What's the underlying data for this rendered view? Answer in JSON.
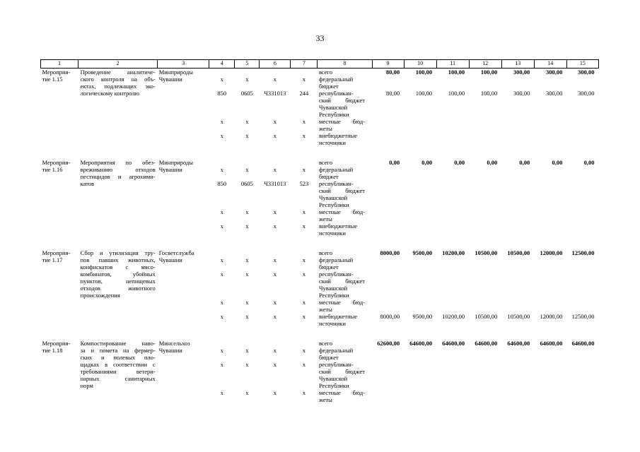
{
  "page": {
    "number": "33"
  },
  "table": {
    "header_cols": [
      "1",
      "2",
      "3",
      "4",
      "5",
      "6",
      "7",
      "8",
      "9",
      "10",
      "11",
      "12",
      "13",
      "14",
      "15"
    ],
    "measures": [
      {
        "id_lines": [
          "Мероприя-",
          "тие 1.15"
        ],
        "name_lines": [
          "Проведение аналитиче-",
          "ского контроля на объ-",
          "ектах, подлежащих эко-",
          "логическому контролю"
        ],
        "agency_lines": [
          "Минприроды",
          "Чувашии"
        ],
        "rows": [
          {
            "codes": [
              "",
              "",
              "",
              ""
            ],
            "type_lines": [
              "всего"
            ],
            "bold": true,
            "values": [
              "80,00",
              "100,00",
              "100,00",
              "100,00",
              "300,00",
              "300,00",
              "300,00"
            ]
          },
          {
            "codes": [
              "х",
              "х",
              "х",
              "х"
            ],
            "type_lines": [
              "федеральный",
              "бюджет"
            ],
            "bold": false,
            "values": [
              "",
              "",
              "",
              "",
              "",
              "",
              ""
            ]
          },
          {
            "codes": [
              "850",
              "0605",
              "Ч331013",
              "244"
            ],
            "type_lines": [
              "республикан-",
              "ский бюджет",
              "Чувашской",
              "Республики"
            ],
            "bold": false,
            "values": [
              "80,00",
              "100,00",
              "100,00",
              "100,00",
              "300,00",
              "300,00",
              "300,00"
            ]
          },
          {
            "codes": [
              "х",
              "х",
              "х",
              "х"
            ],
            "type_lines": [
              "местные бюд-",
              "жеты"
            ],
            "bold": false,
            "values": [
              "",
              "",
              "",
              "",
              "",
              "",
              ""
            ]
          },
          {
            "codes": [
              "х",
              "х",
              "х",
              "х"
            ],
            "type_lines": [
              "внебюджетные",
              "источники"
            ],
            "bold": false,
            "values": [
              "",
              "",
              "",
              "",
              "",
              "",
              ""
            ]
          }
        ]
      },
      {
        "id_lines": [
          "Мероприя-",
          "тие 1.16"
        ],
        "name_lines": [
          "Мероприятия по обез-",
          "вреживанию отходов",
          "пестицидов и агрохими-",
          "катов"
        ],
        "agency_lines": [
          "Минприроды",
          "Чувашии"
        ],
        "rows": [
          {
            "codes": [
              "",
              "",
              "",
              ""
            ],
            "type_lines": [
              "всего"
            ],
            "bold": true,
            "values": [
              "0,00",
              "0,00",
              "0,00",
              "0,00",
              "0,00",
              "0,00",
              "0,00"
            ]
          },
          {
            "codes": [
              "х",
              "х",
              "х",
              "х"
            ],
            "type_lines": [
              "федеральный",
              "бюджет"
            ],
            "bold": false,
            "values": [
              "",
              "",
              "",
              "",
              "",
              "",
              ""
            ]
          },
          {
            "codes": [
              "850",
              "0605",
              "Ч331013",
              "523"
            ],
            "type_lines": [
              "республикан-",
              "ский бюджет",
              "Чувашской",
              "Республики"
            ],
            "bold": false,
            "values": [
              "",
              "",
              "",
              "",
              "",
              "",
              ""
            ]
          },
          {
            "codes": [
              "х",
              "х",
              "х",
              "х"
            ],
            "type_lines": [
              "местные бюд-",
              "жеты"
            ],
            "bold": false,
            "values": [
              "",
              "",
              "",
              "",
              "",
              "",
              ""
            ]
          },
          {
            "codes": [
              "х",
              "х",
              "х",
              "х"
            ],
            "type_lines": [
              "внебюджетные",
              "источники"
            ],
            "bold": false,
            "values": [
              "",
              "",
              "",
              "",
              "",
              "",
              ""
            ]
          }
        ]
      },
      {
        "id_lines": [
          "Мероприя-",
          "тие 1.17"
        ],
        "name_lines": [
          "Сбор и утилизация тру-",
          "пов павших животных,",
          "конфискатов с мясо-",
          "комбинатов, убойных",
          "пунктов, непищевых",
          "отходов животного",
          "происхождения"
        ],
        "agency_lines": [
          "Госветслужба",
          "Чувашии"
        ],
        "rows": [
          {
            "codes": [
              "",
              "",
              "",
              ""
            ],
            "type_lines": [
              "всего"
            ],
            "bold": true,
            "values": [
              "8000,00",
              "9500,00",
              "10200,00",
              "10500,00",
              "10500,00",
              "12000,00",
              "12500,00"
            ]
          },
          {
            "codes": [
              "х",
              "х",
              "х",
              "х"
            ],
            "type_lines": [
              "федеральный",
              "бюджет"
            ],
            "bold": false,
            "values": [
              "",
              "",
              "",
              "",
              "",
              "",
              ""
            ]
          },
          {
            "codes": [
              "х",
              "х",
              "х",
              "х"
            ],
            "type_lines": [
              "республикан-",
              "ский бюджет",
              "Чувашской",
              "Республики"
            ],
            "bold": false,
            "values": [
              "",
              "",
              "",
              "",
              "",
              "",
              ""
            ]
          },
          {
            "codes": [
              "х",
              "х",
              "х",
              "х"
            ],
            "type_lines": [
              "местные бюд-",
              "жеты"
            ],
            "bold": false,
            "values": [
              "",
              "",
              "",
              "",
              "",
              "",
              ""
            ]
          },
          {
            "codes": [
              "х",
              "х",
              "х",
              "х"
            ],
            "type_lines": [
              "внебюджетные",
              "источники"
            ],
            "bold": false,
            "values": [
              "8000,00",
              "9500,00",
              "10200,00",
              "10500,00",
              "10500,00",
              "12000,00",
              "12500,00"
            ]
          }
        ]
      },
      {
        "id_lines": [
          "Мероприя-",
          "тие 1.18"
        ],
        "name_lines": [
          "Компостирование наво-",
          "за и помета на фермер-",
          "ских и полевых пло-",
          "щадках в соответствии с",
          "требованиями ветери-",
          "нарных санитарных",
          "норм"
        ],
        "agency_lines": [
          "Минсельхоз",
          "Чувашии"
        ],
        "rows": [
          {
            "codes": [
              "",
              "",
              "",
              ""
            ],
            "type_lines": [
              "всего"
            ],
            "bold": true,
            "values": [
              "62600,00",
              "64600,00",
              "64600,00",
              "64600,00",
              "64600,00",
              "64600,00",
              "64600,00"
            ]
          },
          {
            "codes": [
              "х",
              "х",
              "х",
              "х"
            ],
            "type_lines": [
              "федеральный",
              "бюджет"
            ],
            "bold": false,
            "values": [
              "",
              "",
              "",
              "",
              "",
              "",
              ""
            ]
          },
          {
            "codes": [
              "х",
              "х",
              "х",
              "х"
            ],
            "type_lines": [
              "республикан-",
              "ский бюджет",
              "Чувашской",
              "Республики"
            ],
            "bold": false,
            "values": [
              "",
              "",
              "",
              "",
              "",
              "",
              ""
            ]
          },
          {
            "codes": [
              "х",
              "х",
              "х",
              "х"
            ],
            "type_lines": [
              "местные бюд-",
              "жеты"
            ],
            "bold": false,
            "values": [
              "",
              "",
              "",
              "",
              "",
              "",
              ""
            ]
          }
        ]
      }
    ]
  }
}
